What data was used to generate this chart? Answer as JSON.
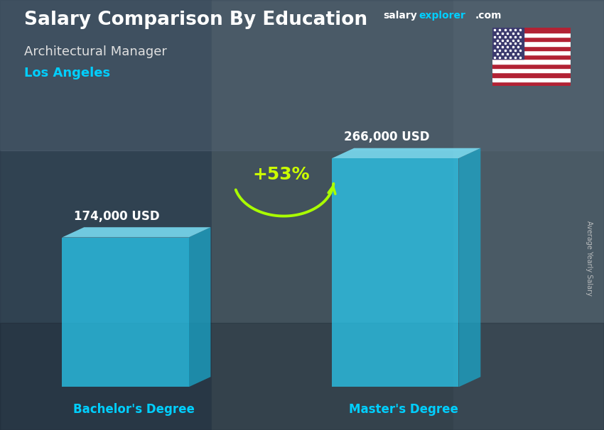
{
  "title_main": "Salary Comparison By Education",
  "title_sub": "Architectural Manager",
  "title_city": "Los Angeles",
  "watermark_salary": "salary",
  "watermark_explorer": "explorer",
  "watermark_com": ".com",
  "side_label": "Average Yearly Salary",
  "categories": [
    "Bachelor's Degree",
    "Master's Degree"
  ],
  "values": [
    174000,
    266000
  ],
  "value_labels": [
    "174,000 USD",
    "266,000 USD"
  ],
  "pct_change": "+53%",
  "bar_face_color": "#29CEF5",
  "bar_top_color": "#7FE8FF",
  "bar_side_color": "#1AABCF",
  "bar_alpha": 0.72,
  "title_color": "#FFFFFF",
  "sub_title_color": "#E0E0E0",
  "city_color": "#00CFFF",
  "value_label_color": "#FFFFFF",
  "xlabel_color": "#00CFFF",
  "pct_color": "#CCFF00",
  "arrow_color": "#AAFF00",
  "watermark_salary_color": "#FFFFFF",
  "watermark_explorer_color": "#00CFFF",
  "watermark_com_color": "#FFFFFF",
  "side_label_color": "#CCCCCC",
  "bg_color": "#4a5a6a"
}
